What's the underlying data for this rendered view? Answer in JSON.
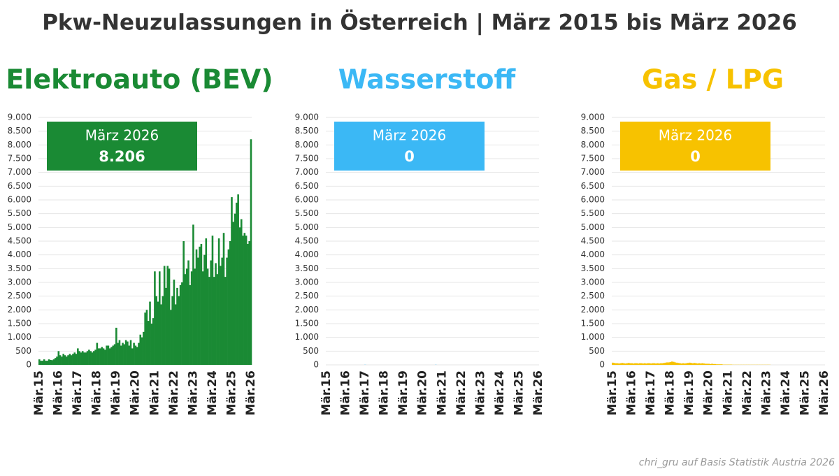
{
  "title": "Pkw-Neuzulassungen in Österreich | März 2015 bis März 2026",
  "footer": "chri_gru auf Basis Statistik Austria 2026",
  "chart_data": [
    {
      "type": "bar",
      "title": "Elektroauto (BEV)",
      "color": "#1a8a34",
      "grid": true,
      "annotation": {
        "label": "März 2026",
        "value": 8206,
        "value_label": "8.206"
      },
      "categories": [
        "Mär.15",
        null,
        null,
        null,
        null,
        null,
        null,
        null,
        null,
        null,
        null,
        null,
        "Mär.16",
        null,
        null,
        null,
        null,
        null,
        null,
        null,
        null,
        null,
        null,
        null,
        "Mär.17",
        null,
        null,
        null,
        null,
        null,
        null,
        null,
        null,
        null,
        null,
        null,
        "Mär.18",
        null,
        null,
        null,
        null,
        null,
        null,
        null,
        null,
        null,
        null,
        null,
        "Mär.19",
        null,
        null,
        null,
        null,
        null,
        null,
        null,
        null,
        null,
        null,
        null,
        "Mär.20",
        null,
        null,
        null,
        null,
        null,
        null,
        null,
        null,
        null,
        null,
        null,
        "Mär.21",
        null,
        null,
        null,
        null,
        null,
        null,
        null,
        null,
        null,
        null,
        null,
        "Mär.22",
        null,
        null,
        null,
        null,
        null,
        null,
        null,
        null,
        null,
        null,
        null,
        "Mär.23",
        null,
        null,
        null,
        null,
        null,
        null,
        null,
        null,
        null,
        null,
        null,
        "Mär.24",
        null,
        null,
        null,
        null,
        null,
        null,
        null,
        null,
        null,
        null,
        null,
        "Mär.25",
        null,
        null,
        null,
        null,
        null,
        null,
        null,
        null,
        null,
        null,
        null,
        "Mär.26"
      ],
      "values": [
        200,
        150,
        150,
        200,
        150,
        150,
        200,
        180,
        170,
        200,
        250,
        300,
        500,
        350,
        300,
        400,
        350,
        300,
        350,
        400,
        350,
        400,
        450,
        400,
        600,
        500,
        450,
        500,
        450,
        450,
        500,
        550,
        500,
        450,
        500,
        550,
        800,
        600,
        600,
        650,
        600,
        550,
        700,
        700,
        600,
        650,
        700,
        750,
        1350,
        800,
        900,
        700,
        800,
        750,
        900,
        850,
        700,
        900,
        600,
        800,
        700,
        650,
        800,
        1100,
        1000,
        1200,
        1900,
        2000,
        1600,
        2300,
        1500,
        1700,
        3400,
        2500,
        2300,
        3400,
        2200,
        2500,
        3600,
        2800,
        3600,
        3500,
        2000,
        2500,
        3100,
        2200,
        2800,
        2500,
        2900,
        3000,
        4500,
        3300,
        3500,
        3800,
        2900,
        3400,
        5100,
        3500,
        4200,
        3900,
        4300,
        4400,
        3400,
        4000,
        4600,
        3500,
        3200,
        3800,
        4700,
        3200,
        3700,
        3300,
        4600,
        3600,
        3900,
        4800,
        3200,
        3900,
        4200,
        4500,
        6100,
        5200,
        5500,
        5900,
        6200,
        5000,
        5300,
        4700,
        4800,
        4700,
        4400,
        4500,
        8206
      ],
      "ylim": [
        0,
        9000
      ],
      "yticks": [
        0,
        500,
        {
          "value": 1000,
          "label": "1.000"
        },
        {
          "value": 1500,
          "label": "1.500"
        },
        {
          "value": 2000,
          "label": "2.000"
        },
        {
          "value": 2500,
          "label": "2.500"
        },
        {
          "value": 3000,
          "label": "3.000"
        },
        {
          "value": 3500,
          "label": "3.500"
        },
        {
          "value": 4000,
          "label": "4.000"
        },
        {
          "value": 4500,
          "label": "4.500"
        },
        {
          "value": 5000,
          "label": "5.000"
        },
        {
          "value": 5500,
          "label": "5.500"
        },
        {
          "value": 6000,
          "label": "6.000"
        },
        {
          "value": 6500,
          "label": "6.500"
        },
        {
          "value": 7000,
          "label": "7.000"
        },
        {
          "value": 7500,
          "label": "7.500"
        },
        {
          "value": 8000,
          "label": "8.000"
        },
        {
          "value": 8500,
          "label": "8.500"
        },
        {
          "value": 9000,
          "label": "9.000"
        }
      ]
    },
    {
      "type": "bar",
      "title": "Wasserstoff",
      "color": "#3bb8f5",
      "grid": true,
      "annotation": {
        "label": "März 2026",
        "value": 0
      },
      "categories": [
        "Mär.15",
        null,
        null,
        null,
        null,
        null,
        null,
        null,
        null,
        null,
        null,
        null,
        "Mär.16",
        null,
        null,
        null,
        null,
        null,
        null,
        null,
        null,
        null,
        null,
        null,
        "Mär.17",
        null,
        null,
        null,
        null,
        null,
        null,
        null,
        null,
        null,
        null,
        null,
        "Mär.18",
        null,
        null,
        null,
        null,
        null,
        null,
        null,
        null,
        null,
        null,
        null,
        "Mär.19",
        null,
        null,
        null,
        null,
        null,
        null,
        null,
        null,
        null,
        null,
        null,
        "Mär.20",
        null,
        null,
        null,
        null,
        null,
        null,
        null,
        null,
        null,
        null,
        null,
        "Mär.21",
        null,
        null,
        null,
        null,
        null,
        null,
        null,
        null,
        null,
        null,
        null,
        "Mär.22",
        null,
        null,
        null,
        null,
        null,
        null,
        null,
        null,
        null,
        null,
        null,
        "Mär.23",
        null,
        null,
        null,
        null,
        null,
        null,
        null,
        null,
        null,
        null,
        null,
        "Mär.24",
        null,
        null,
        null,
        null,
        null,
        null,
        null,
        null,
        null,
        null,
        null,
        "Mär.25",
        null,
        null,
        null,
        null,
        null,
        null,
        null,
        null,
        null,
        null,
        null,
        "Mär.26"
      ],
      "values": [
        0,
        0,
        0,
        0,
        0,
        0,
        0,
        0,
        0,
        0,
        0,
        0,
        0,
        0,
        0,
        0,
        0,
        0,
        0,
        0,
        0,
        0,
        0,
        0,
        5,
        0,
        0,
        0,
        0,
        0,
        0,
        0,
        0,
        0,
        0,
        0,
        0,
        0,
        0,
        0,
        0,
        0,
        0,
        0,
        0,
        0,
        0,
        0,
        0,
        0,
        0,
        0,
        0,
        0,
        0,
        0,
        0,
        0,
        0,
        0,
        0,
        0,
        0,
        0,
        0,
        0,
        0,
        0,
        5,
        0,
        0,
        0,
        0,
        0,
        0,
        0,
        0,
        0,
        0,
        0,
        0,
        0,
        0,
        0,
        0,
        0,
        0,
        0,
        0,
        0,
        0,
        0,
        0,
        0,
        0,
        0,
        0,
        0,
        0,
        0,
        0,
        0,
        0,
        0,
        0,
        0,
        0,
        0,
        0,
        0,
        0,
        0,
        0,
        0,
        0,
        0,
        0,
        0,
        0,
        0,
        0,
        0,
        0,
        0,
        0,
        0,
        0,
        0,
        0,
        0,
        0,
        0,
        0
      ],
      "ylim": [
        0,
        9000
      ],
      "yticks": [
        0,
        500,
        {
          "value": 1000,
          "label": "1.000"
        },
        {
          "value": 1500,
          "label": "1.500"
        },
        {
          "value": 2000,
          "label": "2.000"
        },
        {
          "value": 2500,
          "label": "2.500"
        },
        {
          "value": 3000,
          "label": "3.000"
        },
        {
          "value": 3500,
          "label": "3.500"
        },
        {
          "value": 4000,
          "label": "4.000"
        },
        {
          "value": 4500,
          "label": "4.500"
        },
        {
          "value": 5000,
          "label": "5.000"
        },
        {
          "value": 5500,
          "label": "5.500"
        },
        {
          "value": 6000,
          "label": "6.000"
        },
        {
          "value": 6500,
          "label": "6.500"
        },
        {
          "value": 7000,
          "label": "7.000"
        },
        {
          "value": 7500,
          "label": "7.500"
        },
        {
          "value": 8000,
          "label": "8.000"
        },
        {
          "value": 8500,
          "label": "8.500"
        },
        {
          "value": 9000,
          "label": "9.000"
        }
      ]
    },
    {
      "type": "bar",
      "title": "Gas / LPG",
      "color": "#f7c200",
      "grid": true,
      "annotation": {
        "label": "März 2026",
        "value": 0
      },
      "categories": [
        "Mär.15",
        null,
        null,
        null,
        null,
        null,
        null,
        null,
        null,
        null,
        null,
        null,
        "Mär.16",
        null,
        null,
        null,
        null,
        null,
        null,
        null,
        null,
        null,
        null,
        null,
        "Mär.17",
        null,
        null,
        null,
        null,
        null,
        null,
        null,
        null,
        null,
        null,
        null,
        "Mär.18",
        null,
        null,
        null,
        null,
        null,
        null,
        null,
        null,
        null,
        null,
        null,
        "Mär.19",
        null,
        null,
        null,
        null,
        null,
        null,
        null,
        null,
        null,
        null,
        null,
        "Mär.20",
        null,
        null,
        null,
        null,
        null,
        null,
        null,
        null,
        null,
        null,
        null,
        "Mär.21",
        null,
        null,
        null,
        null,
        null,
        null,
        null,
        null,
        null,
        null,
        null,
        "Mär.22",
        null,
        null,
        null,
        null,
        null,
        null,
        null,
        null,
        null,
        null,
        null,
        "Mär.23",
        null,
        null,
        null,
        null,
        null,
        null,
        null,
        null,
        null,
        null,
        null,
        "Mär.24",
        null,
        null,
        null,
        null,
        null,
        null,
        null,
        null,
        null,
        null,
        null,
        "Mär.25",
        null,
        null,
        null,
        null,
        null,
        null,
        null,
        null,
        null,
        null,
        null,
        "Mär.26"
      ],
      "values": [
        80,
        70,
        60,
        60,
        50,
        60,
        70,
        60,
        50,
        60,
        70,
        60,
        60,
        50,
        60,
        60,
        50,
        60,
        60,
        50,
        60,
        50,
        60,
        60,
        50,
        60,
        60,
        50,
        60,
        50,
        60,
        60,
        70,
        80,
        90,
        90,
        100,
        120,
        110,
        90,
        80,
        70,
        60,
        50,
        60,
        50,
        60,
        70,
        80,
        70,
        60,
        70,
        60,
        50,
        60,
        50,
        60,
        50,
        40,
        40,
        40,
        30,
        40,
        30,
        30,
        20,
        20,
        20,
        20,
        10,
        10,
        10,
        10,
        10,
        10,
        5,
        5,
        5,
        5,
        5,
        5,
        5,
        5,
        5,
        5,
        5,
        5,
        5,
        5,
        5,
        5,
        5,
        5,
        5,
        5,
        5,
        5,
        5,
        5,
        0,
        0,
        0,
        0,
        0,
        0,
        0,
        0,
        0,
        0,
        0,
        0,
        0,
        0,
        0,
        0,
        0,
        0,
        0,
        0,
        0,
        0,
        0,
        0,
        0,
        0,
        0,
        0,
        0,
        0,
        0,
        0,
        0,
        0
      ],
      "ylim": [
        0,
        9000
      ],
      "yticks": [
        0,
        500,
        {
          "value": 1000,
          "label": "1.000"
        },
        {
          "value": 1500,
          "label": "1.500"
        },
        {
          "value": 2000,
          "label": "2.000"
        },
        {
          "value": 2500,
          "label": "2.500"
        },
        {
          "value": 3000,
          "label": "3.000"
        },
        {
          "value": 3500,
          "label": "3.500"
        },
        {
          "value": 4000,
          "label": "4.000"
        },
        {
          "value": 4500,
          "label": "4.500"
        },
        {
          "value": 5000,
          "label": "5.000"
        },
        {
          "value": 5500,
          "label": "5.500"
        },
        {
          "value": 6000,
          "label": "6.000"
        },
        {
          "value": 6500,
          "label": "6.500"
        },
        {
          "value": 7000,
          "label": "7.000"
        },
        {
          "value": 7500,
          "label": "7.500"
        },
        {
          "value": 8000,
          "label": "8.000"
        },
        {
          "value": 8500,
          "label": "8.500"
        },
        {
          "value": 9000,
          "label": "9.000"
        }
      ]
    }
  ]
}
